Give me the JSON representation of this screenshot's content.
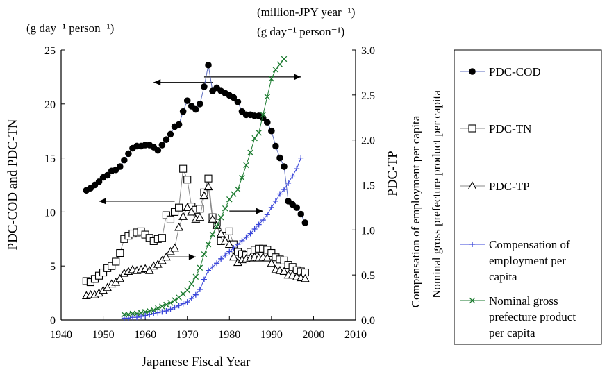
{
  "chart_data": {
    "type": "line",
    "xlabel": "Japanese Fiscal Year",
    "ylabel_left": "PDC-COD and PDC-TN",
    "ylabel_right": "PDC-TP",
    "ylabel_right_extra": [
      "Compensation of employment per capita",
      "Nominal gross prefecture product per capita"
    ],
    "unit_left": "(g day⁻¹ person⁻¹)",
    "unit_right_1": "(million-JPY year⁻¹)",
    "unit_right_2": "(g day⁻¹ person⁻¹)",
    "xlim": [
      1940,
      2010
    ],
    "xticks": [
      "1940",
      "1950",
      "1960",
      "1970",
      "1980",
      "1990",
      "2000",
      "2010"
    ],
    "ylim_left": [
      0,
      25
    ],
    "yticks_left": [
      "0",
      "5",
      "10",
      "15",
      "20",
      "25"
    ],
    "ylim_right": [
      0,
      3.0
    ],
    "yticks_right": [
      "0.0",
      "0.5",
      "1.0",
      "1.5",
      "2.0",
      "2.5",
      "3.0"
    ],
    "legend_position": "right",
    "series": [
      {
        "name": "PDC-COD",
        "axis": "left",
        "marker": "filled-circle",
        "color": "#000000",
        "line_color": "#5b6bbf",
        "legend_label": [
          "PDC-COD"
        ],
        "x": [
          1946,
          1947,
          1948,
          1949,
          1950,
          1951,
          1952,
          1953,
          1954,
          1955,
          1956,
          1957,
          1958,
          1959,
          1960,
          1961,
          1962,
          1963,
          1964,
          1965,
          1966,
          1967,
          1968,
          1969,
          1970,
          1971,
          1972,
          1973,
          1974,
          1975,
          1976,
          1977,
          1978,
          1979,
          1980,
          1981,
          1982,
          1983,
          1984,
          1985,
          1986,
          1987,
          1988,
          1989,
          1990,
          1991,
          1992,
          1993,
          1994,
          1995,
          1996,
          1997,
          1998
        ],
        "y": [
          12.0,
          12.2,
          12.5,
          12.8,
          13.2,
          13.4,
          13.8,
          13.9,
          14.2,
          14.8,
          15.4,
          15.9,
          16.1,
          16.1,
          16.2,
          16.2,
          16.0,
          15.7,
          16.2,
          16.7,
          17.2,
          17.9,
          18.1,
          19.3,
          20.3,
          19.8,
          19.5,
          20.0,
          21.6,
          23.6,
          21.2,
          21.5,
          21.2,
          21.0,
          20.8,
          20.6,
          20.2,
          19.3,
          19.0,
          19.0,
          18.9,
          18.9,
          18.7,
          18.3,
          17.5,
          16.1,
          15.0,
          14.2,
          11.0,
          10.7,
          10.4,
          9.8,
          9.0
        ]
      },
      {
        "name": "PDC-TN",
        "axis": "left",
        "marker": "open-square",
        "color": "#000000",
        "line_color": "#888888",
        "legend_label": [
          "PDC-TN"
        ],
        "x": [
          1946,
          1947,
          1948,
          1949,
          1950,
          1951,
          1952,
          1953,
          1954,
          1955,
          1956,
          1957,
          1958,
          1959,
          1960,
          1961,
          1962,
          1963,
          1964,
          1965,
          1966,
          1967,
          1968,
          1969,
          1970,
          1971,
          1972,
          1973,
          1974,
          1975,
          1976,
          1977,
          1978,
          1979,
          1980,
          1981,
          1982,
          1983,
          1984,
          1985,
          1986,
          1987,
          1988,
          1989,
          1990,
          1991,
          1992,
          1993,
          1994,
          1995,
          1996,
          1997,
          1998
        ],
        "y": [
          3.6,
          3.5,
          3.8,
          4.1,
          4.4,
          4.8,
          5.0,
          5.4,
          6.2,
          7.5,
          7.8,
          8.0,
          8.1,
          8.2,
          7.9,
          7.6,
          7.3,
          7.5,
          7.6,
          9.7,
          9.3,
          10.0,
          10.4,
          14.0,
          13.0,
          10.5,
          10.2,
          10.3,
          11.8,
          13.1,
          9.5,
          9.0,
          7.3,
          7.8,
          8.2,
          7.0,
          6.3,
          6.1,
          6.0,
          6.3,
          6.5,
          6.6,
          6.6,
          6.5,
          6.2,
          5.8,
          5.6,
          5.5,
          5.1,
          4.9,
          4.6,
          4.5,
          4.4
        ]
      },
      {
        "name": "PDC-TP",
        "axis": "right",
        "marker": "open-triangle",
        "color": "#000000",
        "line_color": "#888888",
        "legend_label": [
          "PDC-TP"
        ],
        "x": [
          1946,
          1947,
          1948,
          1949,
          1950,
          1951,
          1952,
          1953,
          1954,
          1955,
          1956,
          1957,
          1958,
          1959,
          1960,
          1961,
          1962,
          1963,
          1964,
          1965,
          1966,
          1967,
          1968,
          1969,
          1970,
          1971,
          1972,
          1973,
          1974,
          1975,
          1976,
          1977,
          1978,
          1979,
          1980,
          1981,
          1982,
          1983,
          1984,
          1985,
          1986,
          1987,
          1988,
          1989,
          1990,
          1991,
          1992,
          1993,
          1994,
          1995,
          1996,
          1997,
          1998
        ],
        "y": [
          0.27,
          0.28,
          0.28,
          0.3,
          0.33,
          0.36,
          0.4,
          0.42,
          0.46,
          0.52,
          0.54,
          0.56,
          0.55,
          0.56,
          0.57,
          0.55,
          0.6,
          0.62,
          0.66,
          0.7,
          0.76,
          0.8,
          1.03,
          1.15,
          1.25,
          1.2,
          1.12,
          1.14,
          1.38,
          1.48,
          1.12,
          1.05,
          0.96,
          0.88,
          0.84,
          0.7,
          0.64,
          0.67,
          0.68,
          0.69,
          0.7,
          0.69,
          0.7,
          0.69,
          0.63,
          0.56,
          0.55,
          0.54,
          0.5,
          0.5,
          0.48,
          0.47,
          0.46
        ]
      },
      {
        "name": "Compensation of employment per capita",
        "axis": "right",
        "marker": "plus",
        "color": "#3a46d9",
        "line_color": "#3a46d9",
        "legend_label": [
          "Compensation of",
          "employment per",
          "capita"
        ],
        "x": [
          1955,
          1956,
          1957,
          1958,
          1959,
          1960,
          1961,
          1962,
          1963,
          1964,
          1965,
          1966,
          1967,
          1968,
          1969,
          1970,
          1971,
          1972,
          1973,
          1974,
          1975,
          1976,
          1977,
          1978,
          1979,
          1980,
          1981,
          1982,
          1983,
          1984,
          1985,
          1986,
          1987,
          1988,
          1989,
          1990,
          1991,
          1992,
          1993,
          1994,
          1995,
          1996,
          1997
        ],
        "y": [
          0.02,
          0.02,
          0.03,
          0.03,
          0.04,
          0.05,
          0.06,
          0.07,
          0.08,
          0.09,
          0.1,
          0.12,
          0.14,
          0.16,
          0.18,
          0.2,
          0.24,
          0.28,
          0.34,
          0.45,
          0.55,
          0.59,
          0.63,
          0.68,
          0.72,
          0.76,
          0.8,
          0.84,
          0.88,
          0.92,
          0.96,
          1.01,
          1.06,
          1.11,
          1.17,
          1.25,
          1.32,
          1.4,
          1.45,
          1.52,
          1.6,
          1.68,
          1.8
        ]
      },
      {
        "name": "Nominal gross prefecture product per capita",
        "axis": "right",
        "marker": "x-cross",
        "color": "#1a7a2e",
        "line_color": "#1a7a2e",
        "legend_label": [
          "Nominal gross",
          "prefecture product",
          "per capita"
        ],
        "x": [
          1955,
          1956,
          1957,
          1958,
          1959,
          1960,
          1961,
          1962,
          1963,
          1964,
          1965,
          1966,
          1967,
          1968,
          1969,
          1970,
          1971,
          1972,
          1973,
          1974,
          1975,
          1976,
          1977,
          1978,
          1979,
          1980,
          1981,
          1982,
          1983,
          1984,
          1985,
          1986,
          1987,
          1988,
          1989,
          1990,
          1991,
          1992,
          1993
        ],
        "y": [
          0.06,
          0.06,
          0.07,
          0.07,
          0.08,
          0.09,
          0.1,
          0.11,
          0.13,
          0.15,
          0.17,
          0.19,
          0.22,
          0.25,
          0.29,
          0.33,
          0.4,
          0.48,
          0.58,
          0.73,
          0.84,
          0.95,
          1.04,
          1.14,
          1.24,
          1.34,
          1.4,
          1.45,
          1.58,
          1.72,
          1.86,
          2.02,
          2.08,
          2.28,
          2.48,
          2.68,
          2.78,
          2.84,
          2.9
        ]
      }
    ],
    "arrows": [
      {
        "y_axis": "left",
        "y": 22.0,
        "x_from": 1976,
        "x_to": 1962,
        "direction": "left"
      },
      {
        "y_axis": "right",
        "y": 2.7,
        "x_from": 1974,
        "x_to": 1997,
        "direction": "right"
      },
      {
        "y_axis": "left",
        "y": 11.0,
        "x_from": 1967,
        "x_to": 1949,
        "direction": "left"
      },
      {
        "y_axis": "right",
        "y": 0.7,
        "x_from": 1964,
        "x_to": 1972,
        "direction": "right"
      },
      {
        "y_axis": "right",
        "y": 1.21,
        "x_from": 1980,
        "x_to": 1988,
        "direction": "right"
      }
    ]
  }
}
